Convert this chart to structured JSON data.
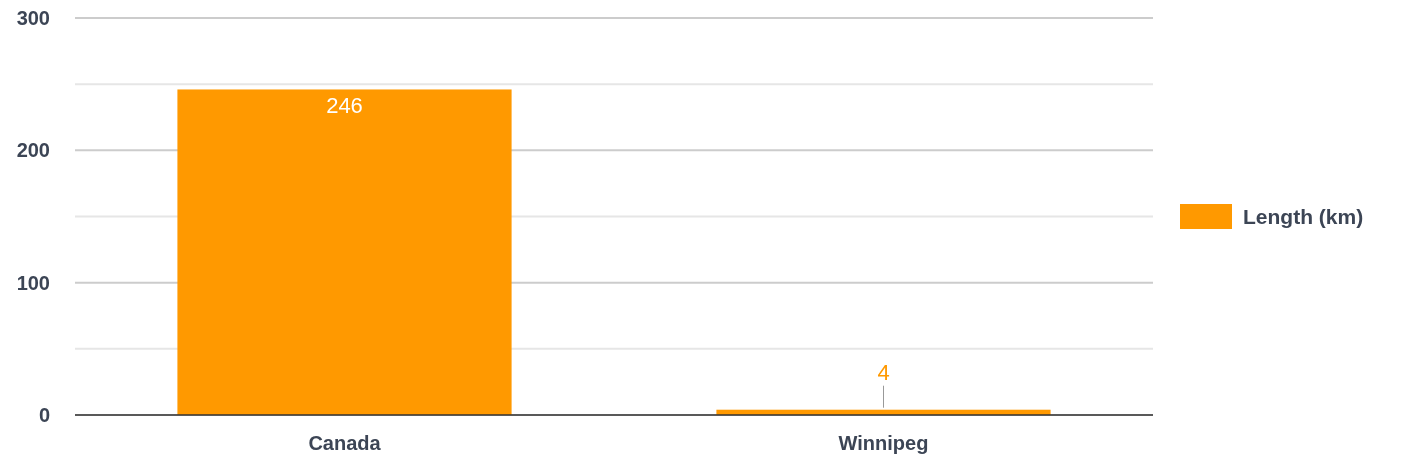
{
  "chart_data": {
    "type": "bar",
    "categories": [
      "Canada",
      "Winnipeg"
    ],
    "series": [
      {
        "name": "Length (km)",
        "color": "#ff9900",
        "values": [
          246,
          4
        ]
      }
    ],
    "ylim": [
      0,
      300
    ],
    "yticks": [
      0,
      {
        "value": 50,
        "label": null
      },
      100,
      {
        "value": 150,
        "label": null
      },
      200,
      {
        "value": 250,
        "label": null
      },
      300
    ],
    "grid": "y",
    "legend": "right",
    "data_labels": true
  }
}
